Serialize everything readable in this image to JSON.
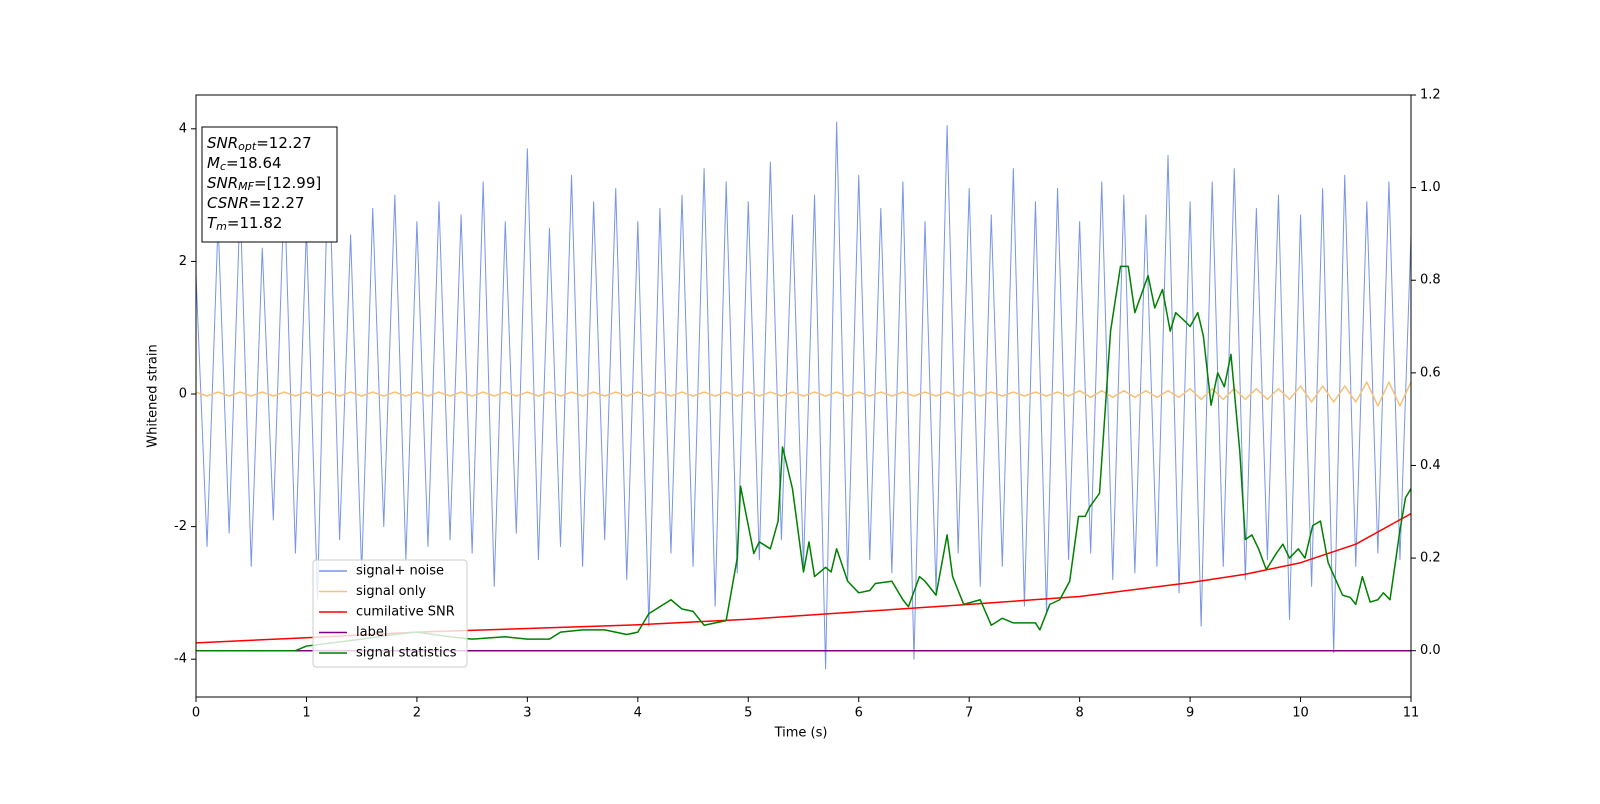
{
  "chart_data": {
    "type": "line",
    "xlabel": "Time (s)",
    "ylabel": "Whitened strain",
    "xlim": [
      0,
      11
    ],
    "xticks": [
      0,
      1,
      2,
      3,
      4,
      5,
      6,
      7,
      8,
      9,
      10,
      11
    ],
    "ylim": [
      -4.57,
      4.51
    ],
    "yticks": [
      -4,
      -2,
      0,
      2,
      4
    ],
    "y2lim": [
      -0.1,
      1.2
    ],
    "y2ticks": [
      {
        "value": 0,
        "label": "0.0"
      },
      {
        "value": 0.2,
        "label": "0.2"
      },
      {
        "value": 0.4,
        "label": "0.4"
      },
      {
        "value": 0.6,
        "label": "0.6"
      },
      {
        "value": 0.8,
        "label": "0.8"
      },
      {
        "value": 1.0,
        "label": "1.0"
      },
      {
        "value": 1.2,
        "label": "1.2"
      }
    ],
    "legend": "lower left",
    "annotation": [
      {
        "base": "SNR",
        "sub": "opt",
        "rest": "=12.27"
      },
      {
        "base": "M",
        "sub": "c",
        "rest": "=18.64"
      },
      {
        "base": "SNR",
        "sub": "MF",
        "rest": "=[12.99]"
      },
      {
        "base": "CSNR",
        "rest": "=12.27"
      },
      {
        "base": "T",
        "sub": "m",
        "rest": "=11.82"
      }
    ],
    "x": [
      0,
      0.1,
      0.2,
      0.3,
      0.4,
      0.5,
      0.6,
      0.7,
      0.8,
      0.9,
      1,
      1.1,
      1.2,
      1.3,
      1.4,
      1.5,
      1.6,
      1.7,
      1.8,
      1.9,
      2,
      2.1,
      2.2,
      2.3,
      2.4,
      2.5,
      2.6,
      2.7,
      2.8,
      2.9,
      3,
      3.1,
      3.2,
      3.3,
      3.4,
      3.5,
      3.6,
      3.7,
      3.8,
      3.9,
      4,
      4.1,
      4.2,
      4.3,
      4.4,
      4.5,
      4.6,
      4.7,
      4.8,
      4.9,
      5,
      5.1,
      5.2,
      5.3,
      5.4,
      5.5,
      5.6,
      5.7,
      5.8,
      5.9,
      6,
      6.1,
      6.2,
      6.3,
      6.4,
      6.5,
      6.6,
      6.7,
      6.8,
      6.9,
      7,
      7.1,
      7.2,
      7.3,
      7.4,
      7.5,
      7.6,
      7.7,
      7.8,
      7.9,
      8,
      8.1,
      8.2,
      8.3,
      8.4,
      8.5,
      8.6,
      8.7,
      8.8,
      8.9,
      9,
      9.1,
      9.2,
      9.3,
      9.4,
      9.5,
      9.6,
      9.7,
      9.8,
      9.9,
      10,
      10.1,
      10.2,
      10.3,
      10.4,
      10.5,
      10.6,
      10.7,
      10.8,
      10.9,
      11
    ],
    "series": [
      {
        "name": "signal+ noise",
        "color": "#7895e8",
        "width": 1,
        "values": [
          1.8,
          -2.3,
          2.6,
          -2.1,
          2.9,
          -2.6,
          2.2,
          -1.9,
          3.1,
          -2.4,
          2.5,
          -3.1,
          3.8,
          -2.2,
          2.4,
          -2.7,
          2.8,
          -2.0,
          3.0,
          -2.5,
          2.6,
          -2.3,
          2.9,
          -2.2,
          2.7,
          -2.4,
          3.2,
          -2.9,
          2.6,
          -2.1,
          3.7,
          -2.5,
          2.5,
          -2.3,
          3.3,
          -2.6,
          2.9,
          -2.2,
          3.1,
          -2.8,
          2.6,
          -3.5,
          2.8,
          -2.4,
          3.0,
          -2.6,
          3.4,
          -3.2,
          3.2,
          -2.7,
          2.9,
          -2.5,
          3.5,
          -2.2,
          2.7,
          -2.6,
          3.0,
          -4.15,
          4.1,
          -2.8,
          3.3,
          -2.5,
          2.8,
          -2.7,
          3.2,
          -4.0,
          2.6,
          -3.0,
          4.05,
          -2.4,
          3.1,
          -2.9,
          2.7,
          -2.6,
          3.4,
          -3.2,
          2.9,
          -3.3,
          3.1,
          -2.5,
          2.6,
          -2.4,
          3.2,
          -2.8,
          3.0,
          -2.7,
          2.7,
          -2.6,
          3.6,
          -3.0,
          2.9,
          -3.5,
          3.2,
          -2.6,
          3.4,
          -2.8,
          2.8,
          -2.5,
          3.0,
          -3.4,
          2.7,
          -2.9,
          3.1,
          -3.9,
          3.3,
          -2.6,
          2.9,
          -2.4,
          3.2,
          -2.5,
          2.4
        ]
      },
      {
        "name": "signal only",
        "color": "#f5c27a",
        "width": 1.5,
        "values": [
          0.03,
          -0.03,
          0.03,
          -0.03,
          0.03,
          -0.03,
          0.03,
          -0.03,
          0.03,
          -0.03,
          0.03,
          -0.03,
          0.03,
          -0.03,
          0.03,
          -0.03,
          0.03,
          -0.03,
          0.03,
          -0.03,
          0.03,
          -0.03,
          0.03,
          -0.03,
          0.03,
          -0.03,
          0.03,
          -0.03,
          0.03,
          -0.03,
          0.03,
          -0.03,
          0.03,
          -0.03,
          0.03,
          -0.03,
          0.03,
          -0.03,
          0.03,
          -0.03,
          0.03,
          -0.03,
          0.03,
          -0.03,
          0.03,
          -0.03,
          0.03,
          -0.03,
          0.03,
          -0.03,
          0.03,
          -0.03,
          0.03,
          -0.03,
          0.03,
          -0.03,
          0.03,
          -0.03,
          0.03,
          -0.03,
          0.03,
          -0.03,
          0.03,
          -0.03,
          0.03,
          -0.03,
          0.03,
          -0.03,
          0.03,
          -0.03,
          0.03,
          -0.03,
          0.03,
          -0.03,
          0.03,
          -0.03,
          0.03,
          -0.03,
          0.03,
          -0.03,
          0.05,
          -0.05,
          0.05,
          -0.05,
          0.05,
          -0.05,
          0.05,
          -0.05,
          0.05,
          -0.05,
          0.08,
          -0.08,
          0.08,
          -0.08,
          0.08,
          -0.08,
          0.08,
          -0.08,
          0.08,
          -0.08,
          0.12,
          -0.12,
          0.12,
          -0.12,
          0.12,
          -0.12,
          0.18,
          -0.18,
          0.18,
          -0.18,
          0.18
        ]
      },
      {
        "name": "cumilative SNR",
        "color": "#ff0000",
        "width": 1.5,
        "axis": "y2",
        "x": [
          0,
          1,
          2,
          3,
          4,
          5,
          6,
          7,
          8,
          9,
          9.5,
          10,
          10.5,
          11
        ],
        "values": [
          0.017,
          0.028,
          0.04,
          0.048,
          0.056,
          0.068,
          0.084,
          0.1,
          0.117,
          0.147,
          0.165,
          0.19,
          0.23,
          0.296
        ]
      },
      {
        "name": "label",
        "color": "#800080",
        "width": 1.5,
        "axis": "y2",
        "x": [
          0,
          11
        ],
        "values": [
          0,
          0
        ]
      },
      {
        "name": "signal statistics",
        "color": "#008000",
        "width": 1.5,
        "axis": "y2",
        "x": [
          0,
          0.9,
          1.0,
          1.5,
          1.8,
          2.0,
          2.3,
          2.5,
          2.8,
          3.0,
          3.2,
          3.3,
          3.5,
          3.7,
          3.9,
          4.0,
          4.1,
          4.3,
          4.4,
          4.5,
          4.6,
          4.8,
          4.9,
          4.93,
          5.05,
          5.1,
          5.2,
          5.27,
          5.31,
          5.4,
          5.5,
          5.55,
          5.6,
          5.7,
          5.75,
          5.8,
          5.9,
          6.0,
          6.1,
          6.15,
          6.3,
          6.4,
          6.45,
          6.55,
          6.6,
          6.7,
          6.8,
          6.85,
          6.95,
          7.1,
          7.2,
          7.3,
          7.4,
          7.6,
          7.64,
          7.73,
          7.82,
          7.91,
          7.99,
          8.05,
          8.09,
          8.18,
          8.28,
          8.37,
          8.44,
          8.5,
          8.62,
          8.68,
          8.75,
          8.82,
          8.87,
          8.96,
          9.0,
          9.07,
          9.12,
          9.19,
          9.25,
          9.31,
          9.37,
          9.45,
          9.5,
          9.56,
          9.62,
          9.69,
          9.78,
          9.84,
          9.9,
          9.98,
          10.04,
          10.11,
          10.18,
          10.25,
          10.38,
          10.45,
          10.5,
          10.56,
          10.63,
          10.7,
          10.75,
          10.81,
          10.9,
          10.95,
          11
        ],
        "values": [
          0,
          0,
          0.01,
          0.025,
          0.035,
          0.04,
          0.03,
          0.025,
          0.03,
          0.025,
          0.025,
          0.04,
          0.045,
          0.045,
          0.035,
          0.04,
          0.08,
          0.11,
          0.09,
          0.085,
          0.055,
          0.065,
          0.2,
          0.355,
          0.21,
          0.235,
          0.22,
          0.28,
          0.44,
          0.35,
          0.17,
          0.235,
          0.16,
          0.18,
          0.17,
          0.22,
          0.15,
          0.125,
          0.13,
          0.145,
          0.15,
          0.11,
          0.095,
          0.16,
          0.15,
          0.12,
          0.25,
          0.16,
          0.1,
          0.11,
          0.055,
          0.07,
          0.06,
          0.06,
          0.045,
          0.1,
          0.11,
          0.15,
          0.29,
          0.29,
          0.31,
          0.34,
          0.69,
          0.83,
          0.83,
          0.73,
          0.81,
          0.74,
          0.78,
          0.69,
          0.73,
          0.71,
          0.7,
          0.73,
          0.68,
          0.53,
          0.6,
          0.57,
          0.64,
          0.43,
          0.24,
          0.25,
          0.22,
          0.175,
          0.21,
          0.23,
          0.2,
          0.22,
          0.2,
          0.27,
          0.28,
          0.19,
          0.12,
          0.115,
          0.1,
          0.16,
          0.105,
          0.11,
          0.125,
          0.11,
          0.26,
          0.33,
          0.35
        ]
      }
    ]
  }
}
